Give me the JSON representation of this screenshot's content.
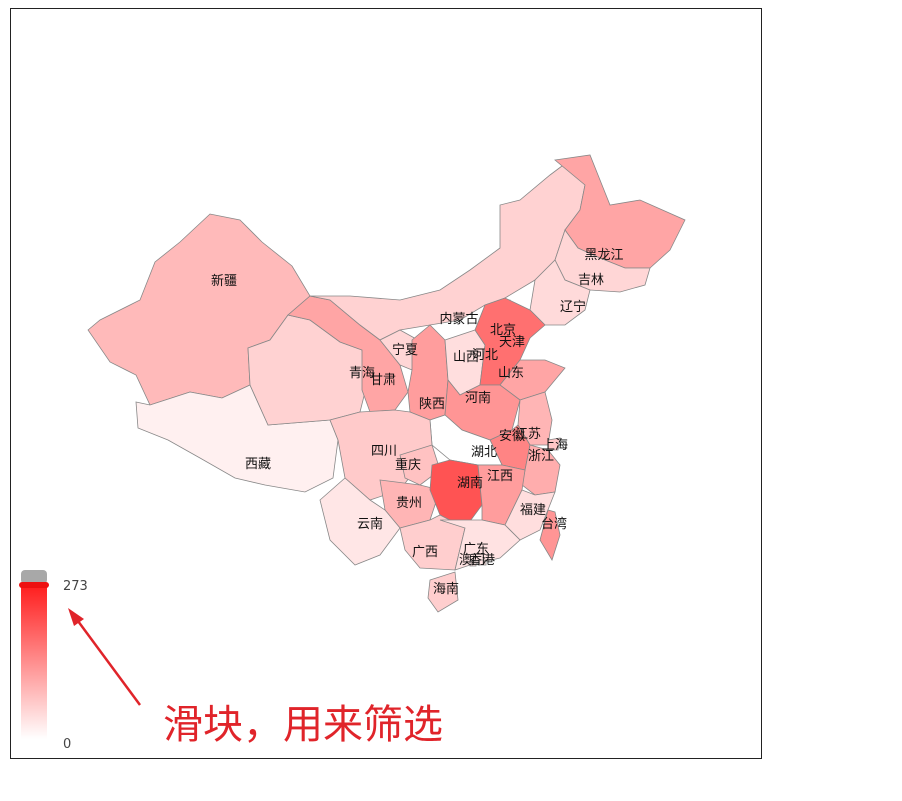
{
  "legend": {
    "max_label": "273",
    "min_label": "0",
    "max": 273,
    "min": 0,
    "color_low": "#ffffff",
    "color_high": "#ff2020",
    "handle_value": 273
  },
  "annotation": {
    "text": "滑块，用来筛选",
    "color": "#e0242a"
  },
  "provinces": [
    {
      "name": "新疆",
      "value": 85
    },
    {
      "name": "西藏",
      "value": 18
    },
    {
      "name": "青海",
      "value": 55
    },
    {
      "name": "甘肃",
      "value": 110
    },
    {
      "name": "内蒙古",
      "value": 55
    },
    {
      "name": "宁夏",
      "value": 50
    },
    {
      "name": "陕西",
      "value": 120
    },
    {
      "name": "山西",
      "value": 40
    },
    {
      "name": "黑龙江",
      "value": 110
    },
    {
      "name": "吉林",
      "value": 50
    },
    {
      "name": "辽宁",
      "value": 45
    },
    {
      "name": "北京",
      "value": 170
    },
    {
      "name": "天津",
      "value": 160
    },
    {
      "name": "河北",
      "value": 175
    },
    {
      "name": "山东",
      "value": 110
    },
    {
      "name": "河南",
      "value": 130
    },
    {
      "name": "江苏",
      "value": 90
    },
    {
      "name": "安徽",
      "value": 150
    },
    {
      "name": "上海",
      "value": 70
    },
    {
      "name": "浙江",
      "value": 100
    },
    {
      "name": "湖北",
      "value": 0
    },
    {
      "name": "四川",
      "value": 65
    },
    {
      "name": "重庆",
      "value": 75
    },
    {
      "name": "贵州",
      "value": 90
    },
    {
      "name": "云南",
      "value": 30
    },
    {
      "name": "湖南",
      "value": 210
    },
    {
      "name": "江西",
      "value": 120
    },
    {
      "name": "福建",
      "value": 40
    },
    {
      "name": "台湾",
      "value": 130
    },
    {
      "name": "广西",
      "value": 60
    },
    {
      "name": "广东",
      "value": 35
    },
    {
      "name": "香港",
      "value": 30
    },
    {
      "name": "澳门",
      "value": 30
    },
    {
      "name": "海南",
      "value": 60
    }
  ]
}
